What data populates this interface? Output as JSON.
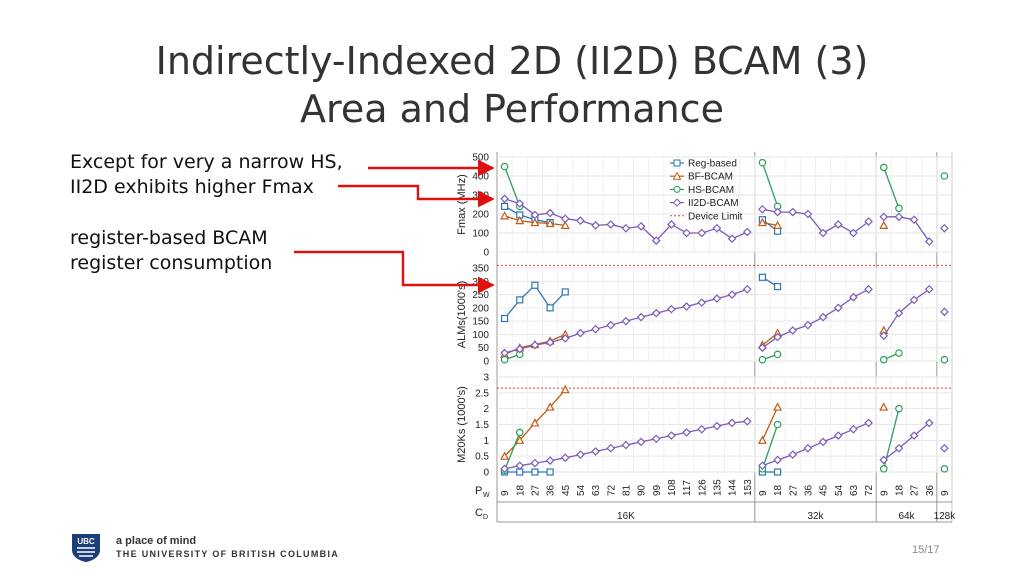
{
  "slide": {
    "title_line1": "Indirectly-Indexed 2D (II2D) BCAM (3)",
    "title_line2": "Area and Performance",
    "bullet1_line1": "Except for very a narrow HS,",
    "bullet1_line2": "II2D exhibits higher Fmax",
    "bullet2_line1": "register-based BCAM",
    "bullet2_line2": "register consumption",
    "footer_tagline": "a place of mind",
    "footer_university": "THE UNIVERSITY OF BRITISH COLUMBIA",
    "logo_text": "UBC",
    "page_number": "15/17"
  },
  "colors": {
    "reg": "#2e75b6",
    "bf": "#c55a11",
    "hs": "#2ca05a",
    "ii2d": "#7b5cb8",
    "limit": "#e0403a",
    "arrow": "#e01010"
  },
  "chart_data": {
    "type": "line",
    "pw_label": "P",
    "pw_sub": "W",
    "cd_label": "C",
    "cd_sub": "D",
    "pw": [
      "9",
      "18",
      "27",
      "36",
      "45",
      "54",
      "63",
      "72",
      "81",
      "90",
      "99",
      "108",
      "117",
      "126",
      "135",
      "144",
      "153",
      "9",
      "18",
      "27",
      "36",
      "45",
      "54",
      "63",
      "72",
      "9",
      "18",
      "27",
      "36",
      "9"
    ],
    "groups": [
      {
        "label": "16K",
        "start": 0,
        "end": 16
      },
      {
        "label": "32k",
        "start": 17,
        "end": 24
      },
      {
        "label": "64k",
        "start": 25,
        "end": 28
      },
      {
        "label": "128k",
        "start": 29,
        "end": 29
      }
    ],
    "legend": [
      "Reg-based",
      "BF-BCAM",
      "HS-BCAM",
      "II2D-BCAM",
      "Device Limit"
    ],
    "panels": [
      {
        "ylabel": "Fmax (MHz)",
        "ylim": [
          0,
          500
        ],
        "ticks": [
          "0",
          "100",
          "200",
          "300",
          "400",
          "500"
        ],
        "tick_values": [
          0,
          100,
          200,
          300,
          400,
          500
        ],
        "device_limit": null,
        "series": [
          {
            "name": "Reg-based",
            "values": [
              240,
              195,
              170,
              155,
              null,
              null,
              null,
              null,
              null,
              null,
              null,
              null,
              null,
              null,
              null,
              null,
              null,
              170,
              110,
              null,
              null,
              null,
              null,
              null,
              null,
              null,
              null,
              null,
              null,
              null
            ]
          },
          {
            "name": "BF-BCAM",
            "values": [
              190,
              165,
              155,
              150,
              140,
              null,
              null,
              null,
              null,
              null,
              null,
              null,
              null,
              null,
              null,
              null,
              null,
              155,
              140,
              null,
              null,
              null,
              null,
              null,
              null,
              140,
              null,
              null,
              null,
              null
            ]
          },
          {
            "name": "HS-BCAM",
            "values": [
              450,
              240,
              null,
              null,
              null,
              null,
              null,
              null,
              null,
              null,
              null,
              null,
              null,
              null,
              null,
              null,
              null,
              470,
              240,
              null,
              null,
              null,
              null,
              null,
              null,
              445,
              230,
              null,
              null,
              400
            ]
          },
          {
            "name": "II2D-BCAM",
            "values": [
              280,
              255,
              195,
              205,
              175,
              165,
              140,
              145,
              125,
              135,
              60,
              145,
              100,
              100,
              125,
              70,
              105,
              225,
              210,
              210,
              200,
              100,
              145,
              100,
              160,
              185,
              185,
              170,
              55,
              125
            ]
          }
        ]
      },
      {
        "ylabel": "ALMs(1000's)",
        "ylim": [
          0,
          350
        ],
        "ticks": [
          "0",
          "50",
          "100",
          "150",
          "200",
          "250",
          "300",
          "350"
        ],
        "tick_values": [
          0,
          50,
          100,
          150,
          200,
          250,
          300,
          350
        ],
        "device_limit": 360,
        "series": [
          {
            "name": "Reg-based",
            "values": [
              160,
              230,
              285,
              200,
              260,
              null,
              null,
              null,
              null,
              null,
              null,
              null,
              null,
              null,
              null,
              null,
              null,
              315,
              280,
              null,
              null,
              null,
              null,
              null,
              null,
              null,
              null,
              null,
              null,
              null
            ]
          },
          {
            "name": "BF-BCAM",
            "values": [
              25,
              50,
              62,
              75,
              100,
              null,
              null,
              null,
              null,
              null,
              null,
              null,
              null,
              null,
              null,
              null,
              null,
              60,
              105,
              null,
              null,
              null,
              null,
              null,
              null,
              115,
              null,
              null,
              null,
              null
            ]
          },
          {
            "name": "HS-BCAM",
            "values": [
              5,
              25,
              null,
              null,
              null,
              null,
              null,
              null,
              null,
              null,
              null,
              null,
              null,
              null,
              null,
              null,
              null,
              5,
              25,
              null,
              null,
              null,
              null,
              null,
              null,
              5,
              30,
              null,
              null,
              5
            ]
          },
          {
            "name": "II2D-BCAM",
            "values": [
              30,
              45,
              60,
              70,
              85,
              105,
              120,
              135,
              150,
              165,
              180,
              195,
              205,
              220,
              235,
              250,
              270,
              50,
              90,
              115,
              135,
              165,
              200,
              240,
              270,
              95,
              180,
              230,
              270,
              185
            ]
          }
        ]
      },
      {
        "ylabel": "M20Ks (1000's)",
        "ylim": [
          0,
          3
        ],
        "ticks": [
          "0",
          "0.5",
          "1",
          "1.5",
          "2",
          "2.5",
          "3"
        ],
        "tick_values": [
          0,
          0.5,
          1,
          1.5,
          2,
          2.5,
          3
        ],
        "device_limit": 2.65,
        "series": [
          {
            "name": "Reg-based",
            "values": [
              0,
              0,
              0,
              0,
              null,
              null,
              null,
              null,
              null,
              null,
              null,
              null,
              null,
              null,
              null,
              null,
              null,
              0,
              0,
              null,
              null,
              null,
              null,
              null,
              null,
              null,
              null,
              null,
              null,
              null
            ]
          },
          {
            "name": "BF-BCAM",
            "values": [
              0.5,
              1.0,
              1.55,
              2.05,
              2.6,
              null,
              null,
              null,
              null,
              null,
              null,
              null,
              null,
              null,
              null,
              null,
              null,
              1.0,
              2.05,
              null,
              null,
              null,
              null,
              null,
              null,
              2.05,
              null,
              null,
              null,
              null
            ]
          },
          {
            "name": "HS-BCAM",
            "values": [
              0.05,
              1.25,
              null,
              null,
              null,
              null,
              null,
              null,
              null,
              null,
              null,
              null,
              null,
              null,
              null,
              null,
              null,
              0.1,
              1.5,
              null,
              null,
              null,
              null,
              null,
              null,
              0.1,
              2.0,
              null,
              null,
              0.1
            ]
          },
          {
            "name": "II2D-BCAM",
            "values": [
              0.1,
              0.2,
              0.28,
              0.36,
              0.45,
              0.55,
              0.65,
              0.75,
              0.85,
              0.95,
              1.05,
              1.15,
              1.25,
              1.35,
              1.45,
              1.55,
              1.6,
              0.2,
              0.38,
              0.55,
              0.75,
              0.95,
              1.15,
              1.35,
              1.55,
              0.38,
              0.75,
              1.15,
              1.55,
              0.75
            ]
          }
        ]
      }
    ]
  }
}
